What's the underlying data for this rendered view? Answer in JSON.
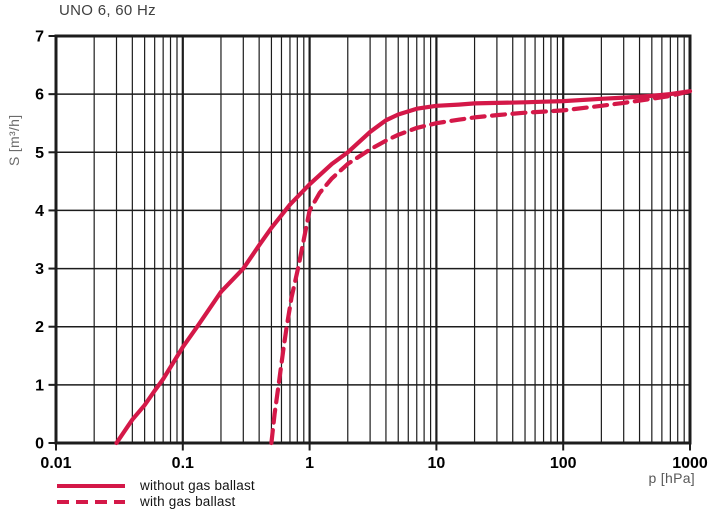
{
  "chart": {
    "title": "UNO 6, 60 Hz",
    "ylabel": "S [m³/h]",
    "xlabel": "p [hPa]"
  },
  "legend": {
    "items": [
      {
        "label": "without gas ballast",
        "style": "solid"
      },
      {
        "label": "with gas ballast",
        "style": "dashed"
      }
    ]
  },
  "colors": {
    "curve": "#d41848",
    "grid": "#1c1c1c",
    "tick_text": "#000000"
  },
  "chart_data": {
    "type": "line",
    "title": "UNO 6, 60 Hz",
    "xlabel": "p [hPa]",
    "ylabel": "S [m³/h]",
    "x_scale": "log",
    "xlim": [
      0.01,
      1000
    ],
    "ylim": [
      0,
      7
    ],
    "grid": true,
    "legend_position": "bottom-left",
    "x_tick_values": [
      0.01,
      0.1,
      1,
      10,
      100,
      1000
    ],
    "x_tick_labels": [
      "0.01",
      "0.1",
      "1",
      "10",
      "100",
      "1000"
    ],
    "y_tick_values": [
      0,
      1,
      2,
      3,
      4,
      5,
      6,
      7
    ],
    "y_tick_labels": [
      "0",
      "1",
      "2",
      "3",
      "4",
      "5",
      "6",
      "7"
    ],
    "series": [
      {
        "name": "without gas ballast",
        "line_style": "solid",
        "points": [
          [
            0.03,
            0
          ],
          [
            0.04,
            0.4
          ],
          [
            0.05,
            0.65
          ],
          [
            0.06,
            0.9
          ],
          [
            0.07,
            1.1
          ],
          [
            0.085,
            1.4
          ],
          [
            0.1,
            1.65
          ],
          [
            0.13,
            2.0
          ],
          [
            0.2,
            2.6
          ],
          [
            0.3,
            3.0
          ],
          [
            0.4,
            3.4
          ],
          [
            0.5,
            3.7
          ],
          [
            0.7,
            4.1
          ],
          [
            1,
            4.45
          ],
          [
            1.5,
            4.8
          ],
          [
            2,
            5.0
          ],
          [
            3,
            5.35
          ],
          [
            4,
            5.55
          ],
          [
            5,
            5.65
          ],
          [
            7,
            5.75
          ],
          [
            10,
            5.8
          ],
          [
            15,
            5.82
          ],
          [
            20,
            5.84
          ],
          [
            30,
            5.85
          ],
          [
            50,
            5.86
          ],
          [
            70,
            5.87
          ],
          [
            100,
            5.88
          ],
          [
            200,
            5.92
          ],
          [
            300,
            5.94
          ],
          [
            500,
            5.97
          ],
          [
            700,
            6.0
          ],
          [
            1000,
            6.05
          ]
        ]
      },
      {
        "name": "with gas ballast",
        "line_style": "dashed",
        "points": [
          [
            0.5,
            0
          ],
          [
            0.53,
            0.5
          ],
          [
            0.57,
            1.0
          ],
          [
            0.62,
            1.6
          ],
          [
            0.66,
            2.0
          ],
          [
            0.72,
            2.5
          ],
          [
            0.81,
            3.0
          ],
          [
            0.9,
            3.5
          ],
          [
            1.0,
            4.0
          ],
          [
            1.2,
            4.3
          ],
          [
            1.5,
            4.55
          ],
          [
            2,
            4.8
          ],
          [
            3,
            5.05
          ],
          [
            4,
            5.2
          ],
          [
            5,
            5.3
          ],
          [
            7,
            5.42
          ],
          [
            10,
            5.5
          ],
          [
            15,
            5.56
          ],
          [
            20,
            5.6
          ],
          [
            30,
            5.64
          ],
          [
            50,
            5.68
          ],
          [
            70,
            5.7
          ],
          [
            100,
            5.72
          ],
          [
            200,
            5.8
          ],
          [
            300,
            5.85
          ],
          [
            500,
            5.92
          ],
          [
            700,
            5.97
          ],
          [
            1000,
            6.05
          ]
        ]
      }
    ]
  }
}
